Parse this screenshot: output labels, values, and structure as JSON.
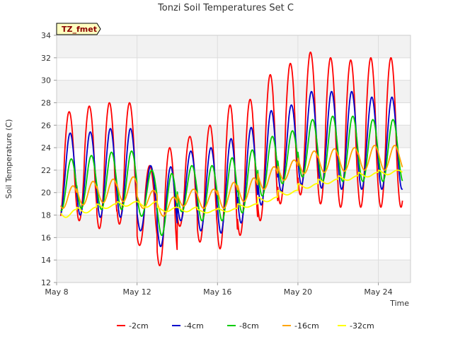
{
  "chart_data": {
    "type": "line",
    "title": "Tonzi Soil Temperatures Set C",
    "xlabel": "Time",
    "ylabel": "Soil Temperature (C)",
    "site_tag": "TZ_fmet",
    "ylim": [
      12,
      34
    ],
    "xlim_days": [
      8.0,
      25.6
    ],
    "x_ticks": [
      {
        "day": 8,
        "label": "May 8"
      },
      {
        "day": 12,
        "label": "May 12"
      },
      {
        "day": 16,
        "label": "May 16"
      },
      {
        "day": 20,
        "label": "May 20"
      },
      {
        "day": 24,
        "label": "May 24"
      }
    ],
    "y_ticks": [
      12,
      14,
      16,
      18,
      20,
      22,
      24,
      26,
      28,
      30,
      32,
      34
    ],
    "grid": true,
    "legend_position": "bottom",
    "series": [
      {
        "name": "-2cm",
        "color": "#ff0000",
        "daily_max": [
          27.2,
          27.7,
          28.0,
          28.0,
          22.4,
          24.0,
          25.0,
          26.0,
          27.8,
          28.3,
          30.5,
          31.5,
          32.5,
          32.0,
          31.8,
          32.0,
          32.0
        ],
        "daily_min": [
          17.5,
          17.5,
          16.8,
          17.2,
          15.3,
          13.5,
          17.0,
          15.6,
          15.0,
          16.2,
          17.5,
          19.0,
          19.8,
          19.0,
          18.7,
          18.7,
          18.7
        ]
      },
      {
        "name": "-4cm",
        "color": "#0000cc",
        "daily_max": [
          25.3,
          25.4,
          25.7,
          25.7,
          22.4,
          22.3,
          23.7,
          24.0,
          24.8,
          25.8,
          27.3,
          27.8,
          29.0,
          29.0,
          29.0,
          28.5,
          28.5
        ],
        "daily_min": [
          18.0,
          18.0,
          17.8,
          17.8,
          16.6,
          15.2,
          17.5,
          16.6,
          16.4,
          17.3,
          18.9,
          20.1,
          20.7,
          20.4,
          20.3,
          20.3,
          20.3
        ]
      },
      {
        "name": "-8cm",
        "color": "#00cc00",
        "daily_max": [
          23.0,
          23.3,
          23.6,
          23.7,
          22.0,
          21.7,
          22.4,
          22.4,
          23.1,
          23.8,
          25.0,
          25.5,
          26.5,
          26.8,
          26.8,
          26.5,
          26.5
        ],
        "daily_min": [
          18.4,
          18.6,
          18.5,
          18.5,
          17.9,
          16.2,
          18.3,
          17.5,
          17.5,
          18.2,
          19.7,
          20.8,
          21.4,
          21.0,
          21.0,
          21.0,
          21.0
        ]
      },
      {
        "name": "-16cm",
        "color": "#ffa500",
        "daily_max": [
          20.6,
          21.0,
          21.2,
          21.4,
          20.2,
          19.6,
          20.3,
          20.3,
          20.9,
          21.3,
          22.3,
          22.9,
          23.7,
          23.9,
          24.0,
          24.2,
          24.2
        ],
        "daily_min": [
          18.6,
          18.9,
          19.1,
          19.2,
          18.6,
          17.9,
          18.8,
          18.6,
          18.6,
          19.2,
          20.3,
          21.1,
          21.7,
          21.8,
          21.9,
          22.0,
          22.0
        ]
      },
      {
        "name": "-32cm",
        "color": "#ffff00",
        "daily_max": [
          18.5,
          18.7,
          19.0,
          19.2,
          19.2,
          18.7,
          18.7,
          18.5,
          18.6,
          19.0,
          19.6,
          20.2,
          20.8,
          21.2,
          21.5,
          21.8,
          22.0
        ],
        "daily_min": [
          17.8,
          18.2,
          18.6,
          18.8,
          18.7,
          18.3,
          18.3,
          18.2,
          18.3,
          18.7,
          19.2,
          19.8,
          20.4,
          20.8,
          21.1,
          21.4,
          21.6
        ]
      }
    ]
  }
}
